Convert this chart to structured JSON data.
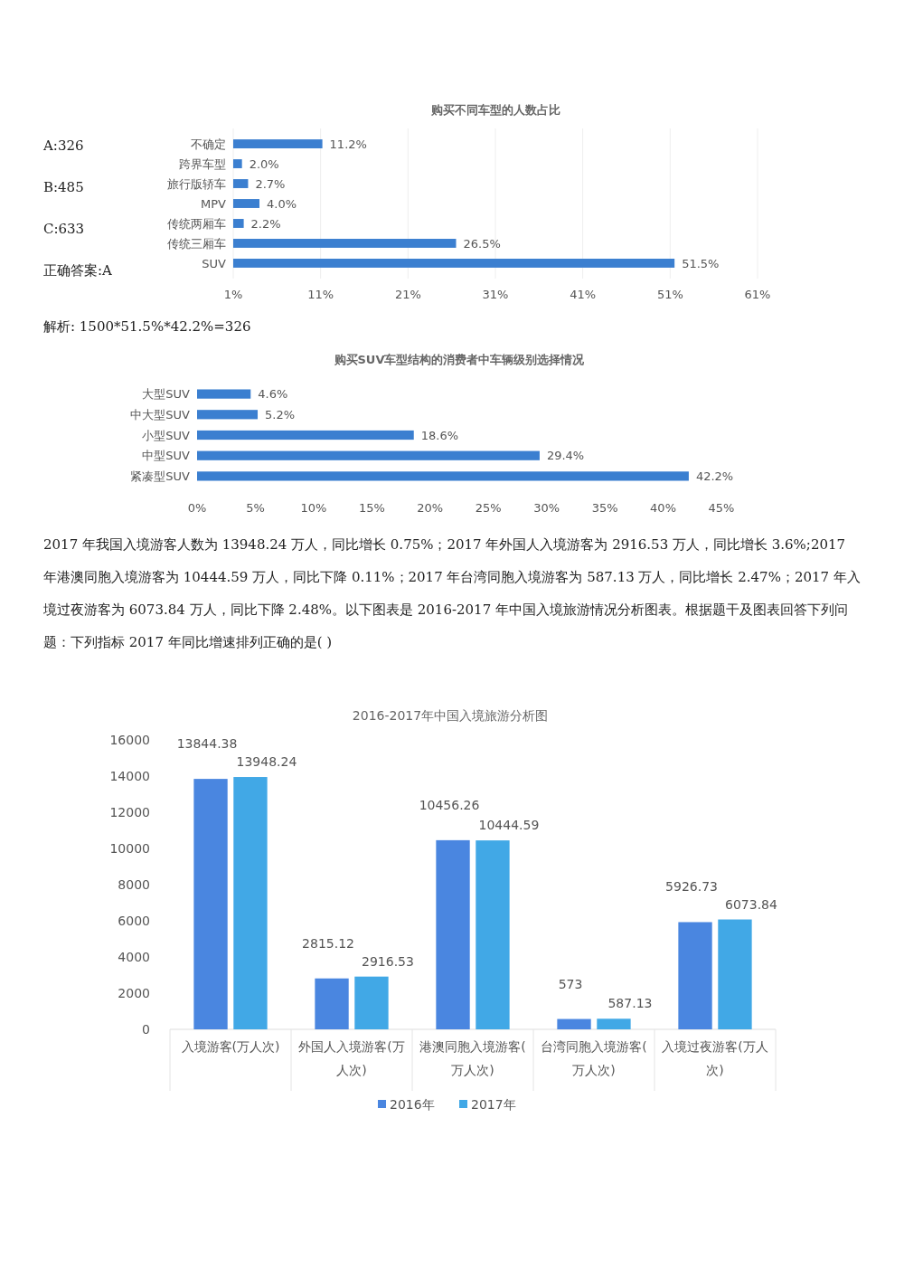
{
  "chart_data": [
    {
      "type": "bar",
      "orientation": "horizontal",
      "title": "购买不同车型的人数占比",
      "categories": [
        "不确定",
        "跨界车型",
        "旅行版轿车",
        "MPV",
        "传统两厢车",
        "传统三厢车",
        "SUV"
      ],
      "values": [
        11.2,
        2.0,
        2.7,
        4.0,
        2.2,
        26.5,
        51.5
      ],
      "value_labels": [
        "11.2%",
        "2.0%",
        "2.7%",
        "4.0%",
        "2.2%",
        "26.5%",
        "51.5%"
      ],
      "color": "#3b7fd0",
      "xlim": [
        1,
        61
      ],
      "xticks": [
        {
          "value": 1,
          "label": "1%"
        },
        {
          "value": 11,
          "label": "11%"
        },
        {
          "value": 21,
          "label": "21%"
        },
        {
          "value": 31,
          "label": "31%"
        },
        {
          "value": 41,
          "label": "41%"
        },
        {
          "value": 51,
          "label": "51%"
        },
        {
          "value": 61,
          "label": "61%"
        }
      ],
      "grid": "x",
      "annotations": [
        "A:326",
        "B:485",
        "C:633",
        "正确答案:A",
        "解析: 1500*51.5%*42.2%=326"
      ]
    },
    {
      "type": "bar",
      "orientation": "horizontal",
      "title": "购买SUV车型结构的消费者中车辆级别选择情况",
      "categories": [
        "大型SUV",
        "中大型SUV",
        "小型SUV",
        "中型SUV",
        "紧凑型SUV"
      ],
      "values": [
        4.6,
        5.2,
        18.6,
        29.4,
        42.2
      ],
      "value_labels": [
        "4.6%",
        "5.2%",
        "18.6%",
        "29.4%",
        "42.2%"
      ],
      "color": "#3b7fd0",
      "xlim": [
        0,
        45
      ],
      "xticks": [
        {
          "value": 0,
          "label": "0%"
        },
        {
          "value": 5,
          "label": "5%"
        },
        {
          "value": 10,
          "label": "10%"
        },
        {
          "value": 15,
          "label": "15%"
        },
        {
          "value": 20,
          "label": "20%"
        },
        {
          "value": 25,
          "label": "25%"
        },
        {
          "value": 30,
          "label": "30%"
        },
        {
          "value": 35,
          "label": "35%"
        },
        {
          "value": 40,
          "label": "40%"
        },
        {
          "value": 45,
          "label": "45%"
        }
      ],
      "annotations": [
        "2017 年我国入境游客人数为 13948.24 万人，同比增长 0.75%；2017 年外国人入境游客为 2916.53 万人，同比增长 3.6%;2017 年港澳同胞入境游客为 10444.59 万人，同比下降 0.11%；2017 年台湾同胞入境游客为 587.13 万人，同比增长 2.47%；2017 年入境过夜游客为 6073.84 万人，同比下降 2.48%。以下图表是 2016-2017 年中国入境旅游情况分析图表。根据题干及图表回答下列问题：下列指标 2017 年同比增速排列正确的是( )"
      ]
    },
    {
      "type": "bar",
      "title": "2016-2017年中国入境旅游分析图",
      "categories": [
        "入境游客(万人次)",
        "外国人入境游客(万人次)",
        "港澳同胞入境游客(万人次)",
        "台湾同胞入境游客(万人次)",
        "入境过夜游客(万人次)"
      ],
      "series": [
        {
          "name": "2016年",
          "color": "#4a86e0",
          "values": [
            13844.38,
            2815.12,
            10456.26,
            573,
            5926.73
          ]
        },
        {
          "name": "2017年",
          "color": "#41a8e6",
          "values": [
            13948.24,
            2916.53,
            10444.59,
            587.13,
            6073.84
          ]
        }
      ],
      "ylim": [
        0,
        16000
      ],
      "yticks": [
        0,
        2000,
        4000,
        6000,
        8000,
        10000,
        12000,
        14000,
        16000
      ],
      "data_labels": true,
      "legend": "bottom"
    }
  ]
}
